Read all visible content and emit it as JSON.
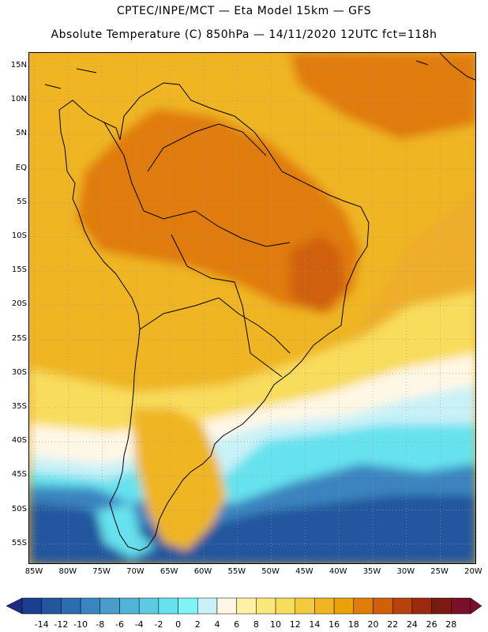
{
  "header": {
    "line1": "CPTEC/INPE/MCT —  Eta Model 15km — GFS",
    "line2": "Absolute Temperature (C) 850hPa — 14/11/2020 12UTC fct=118h"
  },
  "axes": {
    "lat_labels": [
      "15N",
      "10N",
      "5N",
      "EQ",
      "5S",
      "10S",
      "15S",
      "20S",
      "25S",
      "30S",
      "35S",
      "40S",
      "45S",
      "50S",
      "55S"
    ],
    "lon_labels": [
      "85W",
      "80W",
      "75W",
      "70W",
      "65W",
      "60W",
      "55W",
      "50W",
      "45W",
      "40W",
      "35W",
      "30W",
      "25W",
      "20W"
    ]
  },
  "colorbar": {
    "labels": [
      "-14",
      "-12",
      "-10",
      "-8",
      "-6",
      "-4",
      "-2",
      "0",
      "2",
      "4",
      "6",
      "8",
      "10",
      "12",
      "14",
      "16",
      "18",
      "20",
      "22",
      "24",
      "26",
      "28"
    ],
    "colors": [
      "#1b3f8f",
      "#22569e",
      "#2c6db0",
      "#3a84bf",
      "#4a9ccb",
      "#52b3d8",
      "#5bcbe3",
      "#66e2ee",
      "#7ff4f7",
      "#c9f1f8",
      "#fff7e6",
      "#fdf1a7",
      "#fbe87a",
      "#f8dc5c",
      "#f3c93e",
      "#efb522",
      "#eaa20a",
      "#e07c08",
      "#d0600a",
      "#b8420c",
      "#9b2b0f",
      "#7a1a11",
      "#7a0f2c"
    ],
    "under_color": "#1d2b82",
    "over_color": "#7a0f2c"
  },
  "map": {
    "domain": "South America, 85W-20W, 17N-59S",
    "colors": {
      "ocean_north": "#eeae2a",
      "hot_core": "#e07c08",
      "hottest": "#d0600a",
      "warm": "#efb522",
      "mild": "#f8dc5c",
      "cool_band": "#fdf1a7",
      "very_light": "#fff7e6",
      "cold1": "#c9f1f8",
      "cold2": "#66e2ee",
      "cold3": "#3a84bf",
      "cold4": "#22569e",
      "coast": "#000000",
      "grid": "#9a9a9a"
    }
  }
}
